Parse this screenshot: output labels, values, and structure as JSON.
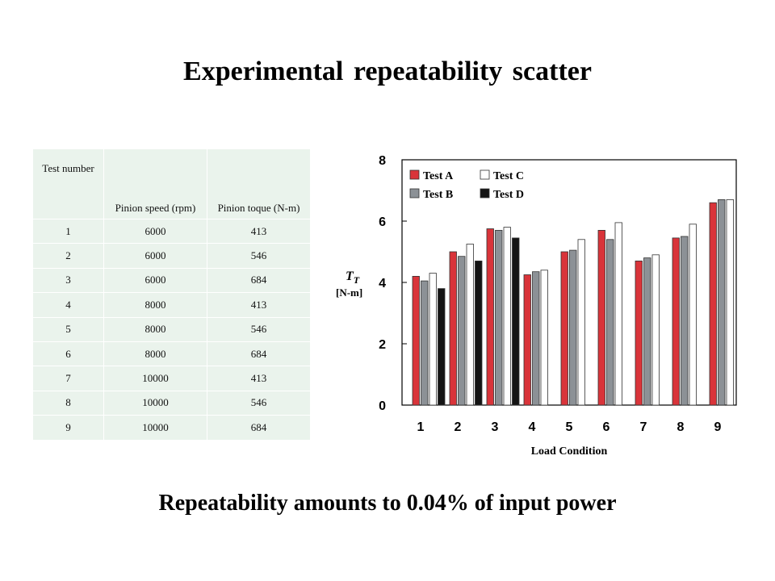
{
  "slide": {
    "title": "Experimental  repeatability scatter",
    "footer": "Repeatability amounts to 0.04% of input power"
  },
  "table": {
    "headers": [
      "Test number",
      "Pinion speed (rpm)",
      "Pinion toque (N-m)"
    ],
    "rows": [
      [
        "1",
        "6000",
        "413"
      ],
      [
        "2",
        "6000",
        "546"
      ],
      [
        "3",
        "6000",
        "684"
      ],
      [
        "4",
        "8000",
        "413"
      ],
      [
        "5",
        "8000",
        "546"
      ],
      [
        "6",
        "8000",
        "684"
      ],
      [
        "7",
        "10000",
        "413"
      ],
      [
        "8",
        "10000",
        "546"
      ],
      [
        "9",
        "10000",
        "684"
      ]
    ]
  },
  "chart_data": {
    "type": "bar",
    "title": "",
    "xlabel": "Load Condition",
    "ylabel_symbol": "T",
    "ylabel_subscript": "T",
    "ylabel_unit": "[N-m]",
    "ylim": [
      0,
      8
    ],
    "yticks": [
      0,
      2,
      4,
      6,
      8
    ],
    "categories": [
      "1",
      "2",
      "3",
      "4",
      "5",
      "6",
      "7",
      "8",
      "9"
    ],
    "legend_position": "top-left",
    "series": [
      {
        "name": "Test A",
        "color": "#d9343a",
        "values": [
          4.2,
          5.0,
          5.75,
          4.25,
          5.0,
          5.7,
          4.7,
          5.45,
          6.6
        ]
      },
      {
        "name": "Test B",
        "color": "#8c9196",
        "values": [
          4.05,
          4.85,
          5.7,
          4.35,
          5.05,
          5.4,
          4.8,
          5.5,
          6.7
        ]
      },
      {
        "name": "Test C",
        "color": "#ffffff",
        "values": [
          4.3,
          5.25,
          5.8,
          4.4,
          5.4,
          5.95,
          4.9,
          5.9,
          6.7
        ]
      },
      {
        "name": "Test D",
        "color": "#141414",
        "values": [
          3.8,
          4.7,
          5.45,
          null,
          null,
          null,
          null,
          null,
          null
        ]
      }
    ],
    "legend_order": [
      "Test A",
      "Test C",
      "Test B",
      "Test D"
    ],
    "grid": false
  }
}
